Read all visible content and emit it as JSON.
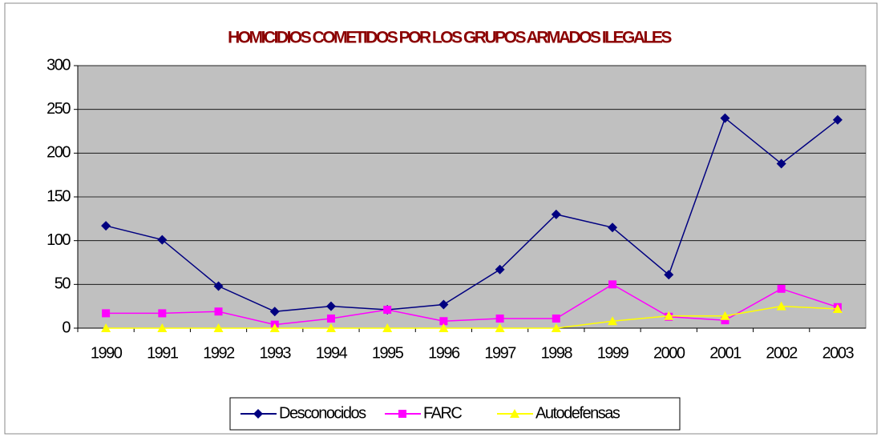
{
  "chart_data": {
    "type": "line",
    "title": "HOMICIDIOS COMETIDOS POR LOS GRUPOS ARMADOS ILEGALES",
    "categories": [
      "1990",
      "1991",
      "1992",
      "1993",
      "1994",
      "1995",
      "1996",
      "1997",
      "1998",
      "1999",
      "2000",
      "2001",
      "2002",
      "2003"
    ],
    "series": [
      {
        "name": "Desconocidos",
        "color": "#000080",
        "marker": "diamond",
        "values": [
          117,
          101,
          48,
          19,
          25,
          21,
          27,
          67,
          130,
          115,
          61,
          240,
          188,
          238
        ]
      },
      {
        "name": "FARC",
        "color": "#ff00ff",
        "marker": "square",
        "values": [
          17,
          17,
          19,
          4,
          11,
          21,
          8,
          11,
          11,
          50,
          13,
          9,
          45,
          24
        ]
      },
      {
        "name": "Autodefensas",
        "color": "#ffff00",
        "marker": "triangle",
        "values": [
          0,
          0,
          0,
          0,
          0,
          0,
          0,
          0,
          0,
          8,
          14,
          14,
          25,
          22
        ]
      }
    ],
    "ylim": [
      0,
      300
    ],
    "yticks": [
      0,
      50,
      100,
      150,
      200,
      250,
      300
    ],
    "grid": true,
    "legend": "bottom"
  }
}
